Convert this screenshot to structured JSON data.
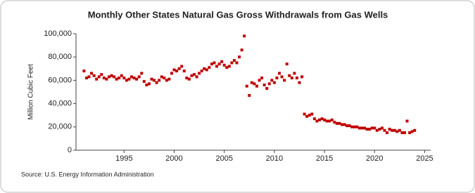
{
  "chart_data": {
    "type": "scatter",
    "title": "Monthly Other States Natural Gas Gross Withdrawals from Gas Wells",
    "y_label": "Million Cubic Feet",
    "source": "Source: U.S. Energy Information Administration",
    "color": "#c00000",
    "grid": false,
    "xlim": [
      1990.2,
      2025.6
    ],
    "xticks": [
      1995,
      2000,
      2005,
      2010,
      2015,
      2020,
      2025
    ],
    "ylim": [
      0,
      100000
    ],
    "yticks": [
      0,
      {
        "value": 20000,
        "label": "20,000"
      },
      {
        "value": 40000,
        "label": "40,000"
      },
      {
        "value": 60000,
        "label": "60,000"
      },
      {
        "value": 80000,
        "label": "80,000"
      },
      {
        "value": 100000,
        "label": "100,000"
      }
    ],
    "x": [
      1991,
      1991.25,
      1991.5,
      1991.75,
      1992,
      1992.25,
      1992.5,
      1992.75,
      1993,
      1993.25,
      1993.5,
      1993.75,
      1994,
      1994.25,
      1994.5,
      1994.75,
      1995,
      1995.25,
      1995.5,
      1995.75,
      1996,
      1996.25,
      1996.5,
      1996.75,
      1997,
      1997.25,
      1997.5,
      1997.75,
      1998,
      1998.25,
      1998.5,
      1998.75,
      1999,
      1999.25,
      1999.5,
      1999.75,
      2000,
      2000.25,
      2000.5,
      2000.75,
      2001,
      2001.25,
      2001.5,
      2001.75,
      2002,
      2002.25,
      2002.5,
      2002.75,
      2003,
      2003.25,
      2003.5,
      2003.75,
      2004,
      2004.25,
      2004.5,
      2004.75,
      2005,
      2005.25,
      2005.5,
      2005.75,
      2006,
      2006.25,
      2006.5,
      2006.75,
      2007,
      2007.25,
      2007.5,
      2007.75,
      2008,
      2008.25,
      2008.5,
      2008.75,
      2009,
      2009.25,
      2009.5,
      2009.75,
      2010,
      2010.25,
      2010.5,
      2010.75,
      2011,
      2011.25,
      2011.5,
      2011.75,
      2012,
      2012.25,
      2012.5,
      2012.75,
      2013,
      2013.25,
      2013.5,
      2013.75,
      2014,
      2014.25,
      2014.5,
      2014.75,
      2015,
      2015.25,
      2015.5,
      2015.75,
      2016,
      2016.25,
      2016.5,
      2016.75,
      2017,
      2017.25,
      2017.5,
      2017.75,
      2018,
      2018.25,
      2018.5,
      2018.75,
      2019,
      2019.25,
      2019.5,
      2019.75,
      2020,
      2020.25,
      2020.5,
      2020.75,
      2021,
      2021.25,
      2021.5,
      2021.75,
      2022,
      2022.25,
      2022.5,
      2022.75,
      2023,
      2023.25,
      2023.5,
      2023.75,
      2024
    ],
    "values": [
      68000,
      62000,
      63000,
      66000,
      64000,
      61000,
      63000,
      65000,
      62000,
      61000,
      63000,
      64000,
      63000,
      61000,
      62000,
      64000,
      62000,
      60000,
      61000,
      63000,
      62000,
      61000,
      63000,
      66000,
      59000,
      56000,
      57000,
      61000,
      60000,
      58000,
      60000,
      63000,
      62000,
      60000,
      61000,
      66000,
      69000,
      68000,
      70000,
      72000,
      68000,
      62000,
      61000,
      64000,
      65000,
      63000,
      66000,
      68000,
      70000,
      69000,
      71000,
      74000,
      75000,
      72000,
      74000,
      76000,
      73000,
      71000,
      72000,
      75000,
      77000,
      75000,
      80000,
      86000,
      98000,
      55000,
      47000,
      58000,
      57000,
      55000,
      60000,
      62000,
      56000,
      53000,
      57000,
      60000,
      58000,
      62000,
      66000,
      63000,
      60000,
      74000,
      64000,
      62000,
      66000,
      62000,
      58000,
      63000,
      31000,
      29000,
      30000,
      31000,
      27000,
      25000,
      26000,
      27000,
      26000,
      25000,
      25000,
      26000,
      24000,
      23000,
      23000,
      22000,
      22000,
      21000,
      21000,
      20000,
      20000,
      20000,
      19000,
      19000,
      19000,
      18000,
      18000,
      19000,
      19000,
      17000,
      18000,
      19000,
      17000,
      15000,
      18000,
      17000,
      17000,
      16000,
      17000,
      15000,
      15000,
      25000,
      15000,
      16000,
      17000
    ]
  }
}
